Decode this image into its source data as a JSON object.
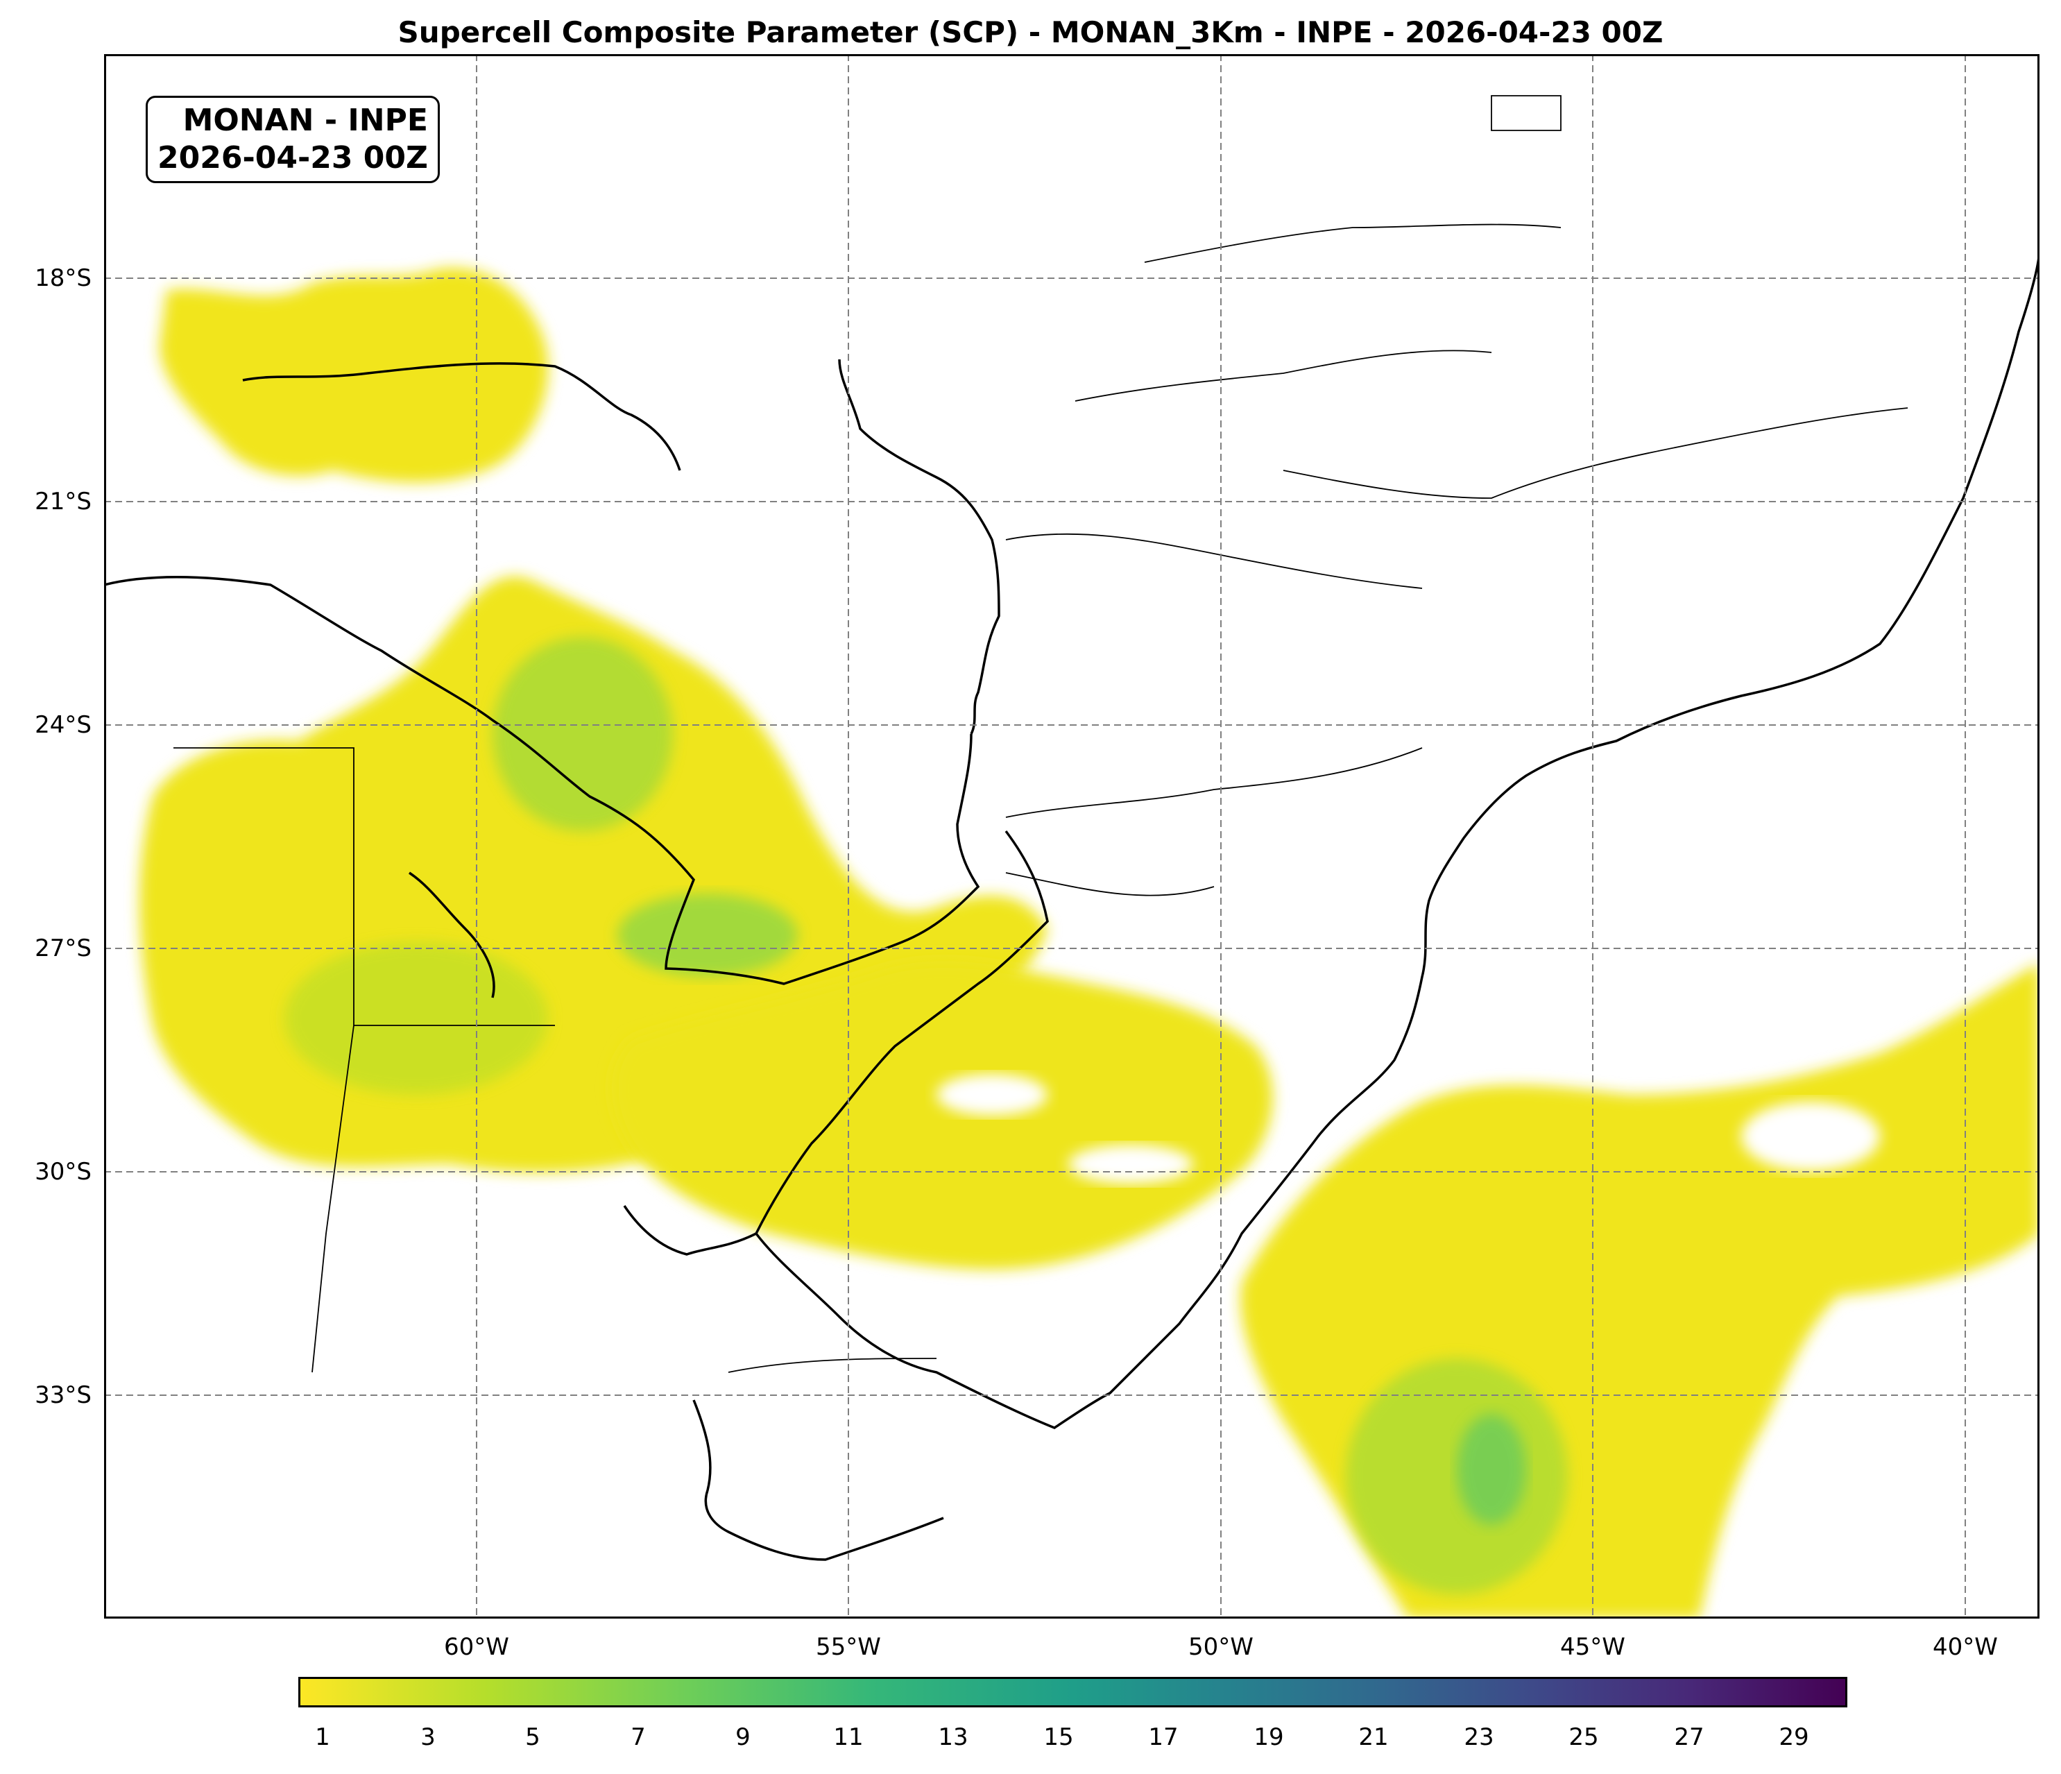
{
  "title": "Supercell Composite Parameter (SCP) - MONAN_3Km - INPE - 2026-04-23 00Z",
  "info_box": {
    "line1": "MONAN - INPE",
    "line2": "2026-04-23 00Z"
  },
  "map": {
    "lon_range": [
      -65,
      -39
    ],
    "lat_range": [
      -36,
      -15
    ],
    "lat_ticks": [
      "18°S",
      "21°S",
      "24°S",
      "27°S",
      "30°S",
      "33°S"
    ],
    "lon_ticks": [
      "60°W",
      "55°W",
      "50°W",
      "45°W",
      "40°W"
    ],
    "gridlines": "dashed gray",
    "field": "SCP"
  },
  "colorbar": {
    "colormap": "viridis_r",
    "range": [
      0.5,
      30
    ],
    "tick_labels": [
      "1",
      "3",
      "5",
      "7",
      "9",
      "11",
      "13",
      "15",
      "17",
      "19",
      "21",
      "23",
      "25",
      "27",
      "29"
    ]
  },
  "colors": {
    "low": "#fde725",
    "mid": "#21918c",
    "high": "#440154"
  }
}
